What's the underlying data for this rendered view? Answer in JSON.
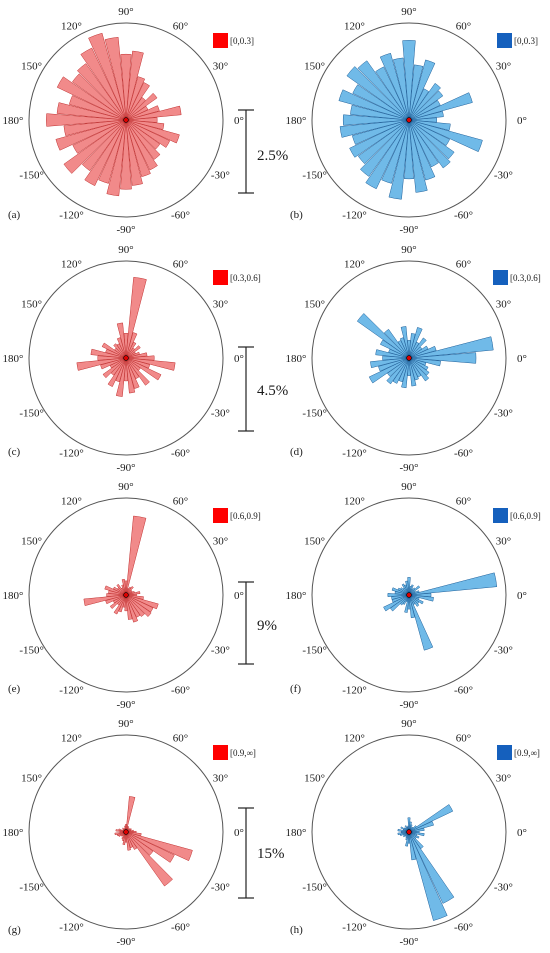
{
  "angle_labels": [
    "0°",
    "30°",
    "60°",
    "90°",
    "120°",
    "150°",
    "180°",
    "-150°",
    "-120°",
    "-90°",
    "-60°",
    "-30°"
  ],
  "colors": {
    "red_fill": "#f08080",
    "red_stroke": "#c03030",
    "red_legend": "#ff0000",
    "blue_fill": "#64b4e6",
    "blue_stroke": "#1f5f99",
    "blue_legend": "#1560bd",
    "circle": "#555555"
  },
  "scales": [
    "2.5%",
    "4.5%",
    "9%",
    "15%"
  ],
  "chart_data": [
    {
      "type": "rose",
      "panel": "(a)",
      "legend": "[0,0.3]",
      "color": "red",
      "rmax": 2.8,
      "sectors": [
        [
          0,
          0.9
        ],
        [
          10,
          1.6
        ],
        [
          20,
          1.0
        ],
        [
          30,
          0.7
        ],
        [
          40,
          1.1
        ],
        [
          50,
          0.8
        ],
        [
          60,
          1.2
        ],
        [
          70,
          1.3
        ],
        [
          80,
          2.0
        ],
        [
          90,
          1.9
        ],
        [
          100,
          2.4
        ],
        [
          110,
          2.6
        ],
        [
          120,
          2.3
        ],
        [
          130,
          2.0
        ],
        [
          140,
          1.9
        ],
        [
          150,
          2.2
        ],
        [
          160,
          1.7
        ],
        [
          170,
          2.0
        ],
        [
          180,
          2.3
        ],
        [
          190,
          1.8
        ],
        [
          200,
          2.1
        ],
        [
          210,
          1.7
        ],
        [
          220,
          2.2
        ],
        [
          230,
          1.8
        ],
        [
          240,
          2.1
        ],
        [
          250,
          1.9
        ],
        [
          260,
          2.2
        ],
        [
          270,
          2.0
        ],
        [
          280,
          1.9
        ],
        [
          290,
          1.7
        ],
        [
          300,
          1.6
        ],
        [
          310,
          1.4
        ],
        [
          320,
          1.2
        ],
        [
          330,
          1.4
        ],
        [
          340,
          1.6
        ],
        [
          350,
          1.1
        ]
      ]
    },
    {
      "type": "rose",
      "panel": "(b)",
      "legend": "[0,0.3]",
      "color": "blue",
      "rmax": 2.8,
      "sectors": [
        [
          0,
          0.8
        ],
        [
          10,
          1.0
        ],
        [
          20,
          1.9
        ],
        [
          30,
          1.0
        ],
        [
          40,
          1.2
        ],
        [
          50,
          1.3
        ],
        [
          60,
          1.0
        ],
        [
          70,
          1.8
        ],
        [
          80,
          1.6
        ],
        [
          90,
          2.3
        ],
        [
          100,
          1.8
        ],
        [
          110,
          2.0
        ],
        [
          120,
          1.7
        ],
        [
          130,
          2.1
        ],
        [
          140,
          2.2
        ],
        [
          150,
          1.8
        ],
        [
          160,
          2.1
        ],
        [
          170,
          1.7
        ],
        [
          180,
          1.9
        ],
        [
          190,
          2.0
        ],
        [
          200,
          1.7
        ],
        [
          210,
          1.9
        ],
        [
          220,
          1.8
        ],
        [
          230,
          2.0
        ],
        [
          240,
          2.2
        ],
        [
          250,
          1.9
        ],
        [
          260,
          2.3
        ],
        [
          270,
          1.7
        ],
        [
          280,
          2.1
        ],
        [
          290,
          1.8
        ],
        [
          300,
          1.5
        ],
        [
          310,
          1.7
        ],
        [
          320,
          1.6
        ],
        [
          330,
          1.3
        ],
        [
          340,
          2.2
        ],
        [
          350,
          1.2
        ]
      ]
    },
    {
      "type": "rose",
      "panel": "(c)",
      "legend": "[0.3,0.6]",
      "color": "red",
      "rmax": 5.5,
      "sectors": [
        [
          0,
          1.6
        ],
        [
          10,
          1.2
        ],
        [
          20,
          0.8
        ],
        [
          30,
          0.6
        ],
        [
          40,
          1.0
        ],
        [
          50,
          0.7
        ],
        [
          60,
          1.0
        ],
        [
          70,
          1.5
        ],
        [
          80,
          4.6
        ],
        [
          90,
          1.4
        ],
        [
          100,
          2.0
        ],
        [
          110,
          1.2
        ],
        [
          120,
          0.9
        ],
        [
          130,
          1.0
        ],
        [
          140,
          0.8
        ],
        [
          150,
          1.5
        ],
        [
          160,
          1.2
        ],
        [
          170,
          2.0
        ],
        [
          180,
          1.6
        ],
        [
          190,
          2.8
        ],
        [
          200,
          1.5
        ],
        [
          210,
          1.0
        ],
        [
          220,
          1.6
        ],
        [
          230,
          1.2
        ],
        [
          240,
          1.8
        ],
        [
          250,
          1.4
        ],
        [
          260,
          2.2
        ],
        [
          270,
          1.3
        ],
        [
          280,
          2.0
        ],
        [
          290,
          1.8
        ],
        [
          300,
          1.3
        ],
        [
          310,
          1.9
        ],
        [
          320,
          1.0
        ],
        [
          330,
          2.2
        ],
        [
          340,
          1.4
        ],
        [
          350,
          2.8
        ]
      ]
    },
    {
      "type": "rose",
      "panel": "(d)",
      "legend": "[0.3,0.6]",
      "color": "blue",
      "rmax": 5.5,
      "sectors": [
        [
          0,
          3.8
        ],
        [
          10,
          4.8
        ],
        [
          20,
          1.6
        ],
        [
          30,
          1.2
        ],
        [
          40,
          0.9
        ],
        [
          50,
          1.4
        ],
        [
          60,
          1.0
        ],
        [
          70,
          1.8
        ],
        [
          80,
          1.4
        ],
        [
          90,
          1.0
        ],
        [
          100,
          1.8
        ],
        [
          110,
          1.2
        ],
        [
          120,
          1.1
        ],
        [
          130,
          2.0
        ],
        [
          140,
          3.6
        ],
        [
          150,
          1.8
        ],
        [
          160,
          1.2
        ],
        [
          170,
          1.9
        ],
        [
          180,
          1.5
        ],
        [
          190,
          2.2
        ],
        [
          200,
          1.8
        ],
        [
          210,
          2.5
        ],
        [
          220,
          1.5
        ],
        [
          230,
          1.8
        ],
        [
          240,
          1.6
        ],
        [
          250,
          1.4
        ],
        [
          260,
          1.7
        ],
        [
          270,
          1.0
        ],
        [
          280,
          1.6
        ],
        [
          290,
          1.3
        ],
        [
          300,
          1.2
        ],
        [
          310,
          1.6
        ],
        [
          320,
          1.4
        ],
        [
          330,
          1.2
        ],
        [
          340,
          1.0
        ],
        [
          350,
          1.8
        ]
      ]
    },
    {
      "type": "rose",
      "panel": "(e)",
      "legend": "[0.6,0.9]",
      "color": "red",
      "rmax": 11,
      "sectors": [
        [
          0,
          1.2
        ],
        [
          10,
          1.6
        ],
        [
          20,
          1.0
        ],
        [
          30,
          0.8
        ],
        [
          40,
          0.8
        ],
        [
          50,
          1.2
        ],
        [
          60,
          1.0
        ],
        [
          70,
          0.8
        ],
        [
          80,
          9.0
        ],
        [
          90,
          1.6
        ],
        [
          100,
          1.8
        ],
        [
          110,
          1.2
        ],
        [
          120,
          0.9
        ],
        [
          130,
          1.5
        ],
        [
          140,
          1.2
        ],
        [
          150,
          1.6
        ],
        [
          160,
          2.5
        ],
        [
          170,
          2.0
        ],
        [
          180,
          2.2
        ],
        [
          190,
          4.8
        ],
        [
          200,
          2.4
        ],
        [
          210,
          1.6
        ],
        [
          220,
          2.2
        ],
        [
          230,
          1.4
        ],
        [
          240,
          2.4
        ],
        [
          250,
          2.0
        ],
        [
          260,
          1.4
        ],
        [
          270,
          1.8
        ],
        [
          280,
          2.8
        ],
        [
          290,
          3.2
        ],
        [
          300,
          2.8
        ],
        [
          310,
          3.0
        ],
        [
          320,
          3.5
        ],
        [
          330,
          3.4
        ],
        [
          340,
          3.8
        ],
        [
          350,
          2.0
        ]
      ]
    },
    {
      "type": "rose",
      "panel": "(f)",
      "legend": "[0.6,0.9]",
      "color": "blue",
      "rmax": 11,
      "sectors": [
        [
          0,
          2.5
        ],
        [
          10,
          10.0
        ],
        [
          20,
          1.2
        ],
        [
          30,
          0.8
        ],
        [
          40,
          1.5
        ],
        [
          50,
          1.0
        ],
        [
          60,
          0.8
        ],
        [
          70,
          1.2
        ],
        [
          80,
          1.0
        ],
        [
          90,
          2.0
        ],
        [
          100,
          1.6
        ],
        [
          110,
          1.2
        ],
        [
          120,
          1.4
        ],
        [
          130,
          1.0
        ],
        [
          140,
          1.2
        ],
        [
          150,
          1.4
        ],
        [
          160,
          2.0
        ],
        [
          170,
          1.6
        ],
        [
          180,
          2.4
        ],
        [
          190,
          2.0
        ],
        [
          200,
          2.0
        ],
        [
          210,
          3.2
        ],
        [
          220,
          2.6
        ],
        [
          230,
          1.4
        ],
        [
          240,
          1.2
        ],
        [
          250,
          0.8
        ],
        [
          260,
          2.0
        ],
        [
          270,
          1.6
        ],
        [
          280,
          2.6
        ],
        [
          290,
          6.5
        ],
        [
          300,
          1.2
        ],
        [
          310,
          1.6
        ],
        [
          320,
          1.4
        ],
        [
          330,
          1.8
        ],
        [
          340,
          1.2
        ],
        [
          350,
          2.8
        ]
      ]
    },
    {
      "type": "rose",
      "panel": "(g)",
      "legend": "[0.9,∞]",
      "color": "red",
      "rmax": 19,
      "sectors": [
        [
          0,
          2.0
        ],
        [
          10,
          1.5
        ],
        [
          20,
          1.0
        ],
        [
          30,
          1.2
        ],
        [
          40,
          1.0
        ],
        [
          50,
          0.8
        ],
        [
          60,
          1.0
        ],
        [
          70,
          1.2
        ],
        [
          80,
          7.0
        ],
        [
          90,
          1.5
        ],
        [
          100,
          1.2
        ],
        [
          110,
          0.8
        ],
        [
          120,
          0.6
        ],
        [
          130,
          1.0
        ],
        [
          140,
          0.8
        ],
        [
          150,
          0.6
        ],
        [
          160,
          1.5
        ],
        [
          170,
          2.0
        ],
        [
          180,
          1.2
        ],
        [
          190,
          2.2
        ],
        [
          200,
          1.8
        ],
        [
          210,
          1.6
        ],
        [
          220,
          1.2
        ],
        [
          230,
          1.0
        ],
        [
          240,
          1.5
        ],
        [
          250,
          1.8
        ],
        [
          260,
          2.5
        ],
        [
          270,
          2.0
        ],
        [
          280,
          3.6
        ],
        [
          290,
          3.2
        ],
        [
          300,
          3.8
        ],
        [
          310,
          13.0
        ],
        [
          320,
          6.5
        ],
        [
          330,
          10.5
        ],
        [
          340,
          13.5
        ],
        [
          350,
          3.0
        ]
      ]
    },
    {
      "type": "rose",
      "panel": "(h)",
      "legend": "[0.9,∞]",
      "color": "blue",
      "rmax": 19,
      "sectors": [
        [
          0,
          2.0
        ],
        [
          10,
          3.0
        ],
        [
          20,
          5.0
        ],
        [
          30,
          9.5
        ],
        [
          40,
          1.8
        ],
        [
          50,
          1.2
        ],
        [
          60,
          1.0
        ],
        [
          70,
          1.5
        ],
        [
          80,
          2.0
        ],
        [
          90,
          2.8
        ],
        [
          100,
          1.2
        ],
        [
          110,
          1.0
        ],
        [
          120,
          1.4
        ],
        [
          130,
          1.0
        ],
        [
          140,
          1.2
        ],
        [
          150,
          1.8
        ],
        [
          160,
          1.2
        ],
        [
          170,
          2.2
        ],
        [
          180,
          1.5
        ],
        [
          190,
          2.2
        ],
        [
          200,
          1.8
        ],
        [
          210,
          1.2
        ],
        [
          220,
          1.4
        ],
        [
          230,
          1.0
        ],
        [
          240,
          1.2
        ],
        [
          250,
          1.6
        ],
        [
          260,
          2.8
        ],
        [
          270,
          2.2
        ],
        [
          280,
          5.5
        ],
        [
          290,
          18.0
        ],
        [
          300,
          15.5
        ],
        [
          310,
          4.0
        ],
        [
          320,
          1.8
        ],
        [
          330,
          2.2
        ],
        [
          340,
          1.6
        ],
        [
          350,
          3.0
        ]
      ]
    }
  ]
}
